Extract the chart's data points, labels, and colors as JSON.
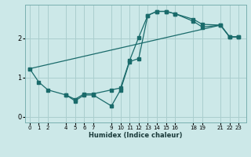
{
  "xlabel": "Humidex (Indice chaleur)",
  "bg_color": "#cce8e8",
  "line_color": "#1a6b6b",
  "grid_color": "#aacece",
  "xticks": [
    0,
    1,
    2,
    4,
    5,
    6,
    7,
    9,
    10,
    11,
    12,
    13,
    14,
    15,
    16,
    18,
    19,
    21,
    22,
    23
  ],
  "yticks": [
    0,
    1,
    2
  ],
  "xlim": [
    -0.5,
    23.8
  ],
  "ylim": [
    -0.15,
    2.85
  ],
  "line1_x": [
    0,
    1,
    2,
    4,
    5,
    6,
    7,
    9,
    10,
    11,
    12,
    13,
    14,
    15,
    16,
    18,
    19,
    21,
    22,
    23
  ],
  "line1_y": [
    1.22,
    0.88,
    0.68,
    0.55,
    0.44,
    0.58,
    0.58,
    0.68,
    0.73,
    1.43,
    2.02,
    2.58,
    2.68,
    2.68,
    2.62,
    2.48,
    2.35,
    2.33,
    2.03,
    2.03
  ],
  "line2_x": [
    4,
    5,
    6,
    7,
    9,
    10,
    11,
    12,
    13,
    14,
    15,
    16,
    18,
    19,
    21,
    22,
    23
  ],
  "line2_y": [
    0.55,
    0.4,
    0.55,
    0.55,
    0.27,
    0.68,
    1.4,
    1.48,
    2.58,
    2.68,
    2.68,
    2.62,
    2.43,
    2.28,
    2.33,
    2.03,
    2.03
  ],
  "line3_x": [
    0,
    21,
    22,
    23
  ],
  "line3_y": [
    1.22,
    2.33,
    2.03,
    2.03
  ]
}
